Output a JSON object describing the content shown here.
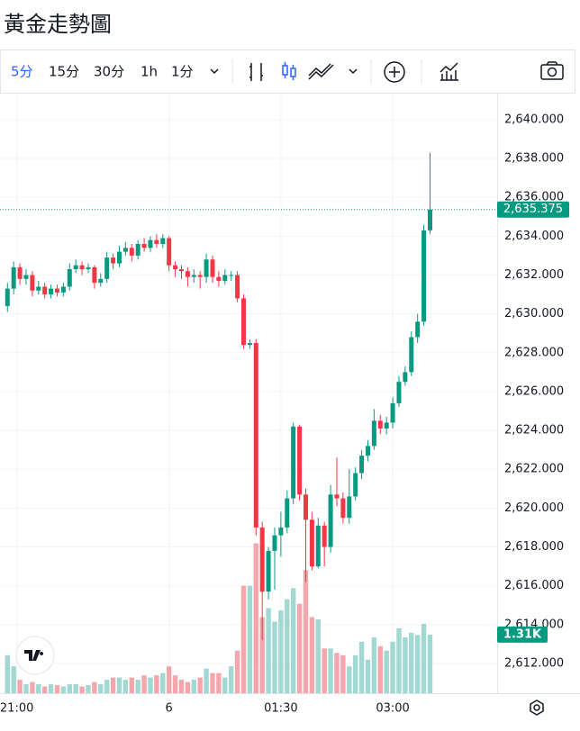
{
  "header": {
    "title": "黃金走勢圖"
  },
  "toolbar": {
    "intervals": [
      "5分",
      "15分",
      "30分",
      "1h",
      "1分"
    ]
  },
  "chart_data": {
    "type": "candlestick",
    "up_color": "#089981",
    "down_color": "#f23645",
    "volume_up_color": "#a1d8d1",
    "volume_down_color": "#f5a6ac",
    "open": [
      2630.4,
      2631.3,
      2632.4,
      2631.8,
      2632.0,
      2631.2,
      2631.4,
      2631.0,
      2631.3,
      2631.1,
      2631.4,
      2632.3,
      2632.5,
      2632.3,
      2632.4,
      2631.6,
      2631.8,
      2632.9,
      2632.6,
      2633.2,
      2633.4,
      2633.0,
      2633.6,
      2633.4,
      2633.8,
      2633.6,
      2633.9,
      2632.5,
      2632.3,
      2632.2,
      2631.9,
      2632.0,
      2631.9,
      2632.8,
      2631.9,
      2631.7,
      2632.0,
      2632.0,
      2630.8,
      2628.4,
      2628.5,
      2619.0,
      2615.7,
      2617.8,
      2618.6,
      2619.0,
      2620.5,
      2624.2,
      2620.7,
      2619.4,
      2617.0,
      2619.1,
      2618.0,
      2620.7,
      2620.5,
      2619.5,
      2620.6,
      2621.8,
      2622.7,
      2623.2,
      2624.5,
      2624.1,
      2624.4,
      2625.4,
      2626.5,
      2627.0,
      2628.8,
      2629.6,
      2634.3
    ],
    "high": [
      2631.6,
      2632.7,
      2632.6,
      2632.3,
      2632.2,
      2631.7,
      2631.6,
      2631.5,
      2631.5,
      2631.6,
      2632.6,
      2632.8,
      2632.7,
      2632.6,
      2632.5,
      2632.1,
      2633.2,
      2633.1,
      2633.5,
      2633.7,
      2633.6,
      2633.8,
      2633.9,
      2634.0,
      2634.1,
      2634.1,
      2634.0,
      2632.7,
      2632.5,
      2632.4,
      2632.3,
      2632.2,
      2633.1,
      2633.0,
      2632.2,
      2632.3,
      2632.2,
      2632.2,
      2631.0,
      2628.7,
      2628.7,
      2619.3,
      2618.0,
      2619.0,
      2619.8,
      2620.9,
      2624.4,
      2624.3,
      2621.0,
      2619.8,
      2619.5,
      2619.3,
      2621.2,
      2622.6,
      2620.8,
      2622.0,
      2622.1,
      2623.0,
      2623.5,
      2625.1,
      2624.8,
      2624.7,
      2625.7,
      2626.8,
      2627.3,
      2629.1,
      2630.0,
      2634.6,
      2638.3
    ],
    "low": [
      2630.1,
      2631.0,
      2631.5,
      2631.5,
      2630.9,
      2631.0,
      2630.8,
      2630.8,
      2630.9,
      2630.9,
      2631.2,
      2632.1,
      2632.0,
      2632.1,
      2631.3,
      2631.4,
      2631.6,
      2632.3,
      2632.4,
      2633.0,
      2632.7,
      2632.8,
      2633.2,
      2633.2,
      2633.4,
      2633.4,
      2632.2,
      2631.9,
      2631.8,
      2631.4,
      2631.6,
      2631.3,
      2631.6,
      2631.6,
      2631.4,
      2631.5,
      2631.7,
      2630.6,
      2628.2,
      2628.2,
      2618.6,
      2613.2,
      2615.3,
      2615.8,
      2617.5,
      2618.7,
      2620.2,
      2620.4,
      2616.2,
      2616.8,
      2616.9,
      2617.0,
      2617.7,
      2620.1,
      2619.2,
      2619.2,
      2620.4,
      2621.5,
      2622.4,
      2623.0,
      2623.8,
      2623.8,
      2624.1,
      2625.2,
      2626.3,
      2626.8,
      2628.5,
      2629.4,
      2634.1
    ],
    "close": [
      2631.3,
      2632.4,
      2631.8,
      2632.0,
      2631.2,
      2631.4,
      2631.0,
      2631.3,
      2631.1,
      2631.4,
      2632.3,
      2632.5,
      2632.3,
      2632.4,
      2631.6,
      2631.8,
      2632.9,
      2632.6,
      2633.2,
      2633.4,
      2633.0,
      2633.6,
      2633.4,
      2633.8,
      2633.6,
      2633.9,
      2632.5,
      2632.3,
      2632.2,
      2631.9,
      2632.0,
      2631.9,
      2632.8,
      2631.9,
      2631.7,
      2632.0,
      2632.0,
      2630.8,
      2628.4,
      2628.5,
      2619.0,
      2615.7,
      2617.8,
      2618.6,
      2619.0,
      2620.5,
      2624.2,
      2620.7,
      2619.4,
      2617.0,
      2619.1,
      2618.0,
      2620.7,
      2620.5,
      2619.5,
      2620.6,
      2621.8,
      2622.7,
      2623.2,
      2624.5,
      2624.1,
      2624.4,
      2625.4,
      2626.5,
      2627.0,
      2628.8,
      2629.6,
      2634.3,
      2635.375
    ],
    "volume": [
      0.85,
      0.6,
      0.3,
      0.2,
      0.25,
      0.2,
      0.15,
      0.2,
      0.18,
      0.15,
      0.2,
      0.2,
      0.15,
      0.18,
      0.25,
      0.2,
      0.3,
      0.35,
      0.35,
      0.3,
      0.35,
      0.3,
      0.4,
      0.35,
      0.4,
      0.45,
      0.6,
      0.4,
      0.3,
      0.25,
      0.3,
      0.35,
      0.55,
      0.45,
      0.45,
      0.35,
      0.6,
      0.95,
      2.4,
      2.4,
      3.35,
      1.7,
      1.9,
      1.6,
      1.85,
      2.1,
      2.35,
      2.0,
      2.75,
      1.7,
      1.65,
      1.0,
      1.0,
      0.9,
      0.85,
      0.6,
      0.85,
      1.15,
      0.75,
      1.25,
      1.05,
      0.95,
      1.15,
      1.45,
      1.25,
      1.35,
      1.3,
      1.55,
      1.31
    ],
    "last_price_label": "2,635.375",
    "last_volume_label": "1.31K",
    "ylim": [
      2610.47,
      2641.34
    ],
    "volume_lim": [
      0,
      13.4
    ],
    "yticks": [
      {
        "value": 2612,
        "label": "2,612.000"
      },
      {
        "value": 2614,
        "label": "2,614.000"
      },
      {
        "value": 2616,
        "label": "2,616.000"
      },
      {
        "value": 2618,
        "label": "2,618.000"
      },
      {
        "value": 2620,
        "label": "2,620.000"
      },
      {
        "value": 2622,
        "label": "2,622.000"
      },
      {
        "value": 2624,
        "label": "2,624.000"
      },
      {
        "value": 2626,
        "label": "2,626.000"
      },
      {
        "value": 2628,
        "label": "2,628.000"
      },
      {
        "value": 2630,
        "label": "2,630.000"
      },
      {
        "value": 2632,
        "label": "2,632.000"
      },
      {
        "value": 2634,
        "label": "2,634.000"
      },
      {
        "value": 2636,
        "label": "2,636.000"
      },
      {
        "value": 2638,
        "label": "2,638.000"
      },
      {
        "value": 2640,
        "label": "2,640.000"
      }
    ],
    "xlim": [
      -1.2,
      78.8
    ],
    "xticks": [
      {
        "value": 1.5,
        "label": "21:00"
      },
      {
        "value": 26,
        "label": "6"
      },
      {
        "value": 44,
        "label": "01:30"
      },
      {
        "value": 62,
        "label": "03:00"
      }
    ],
    "grid": true
  }
}
